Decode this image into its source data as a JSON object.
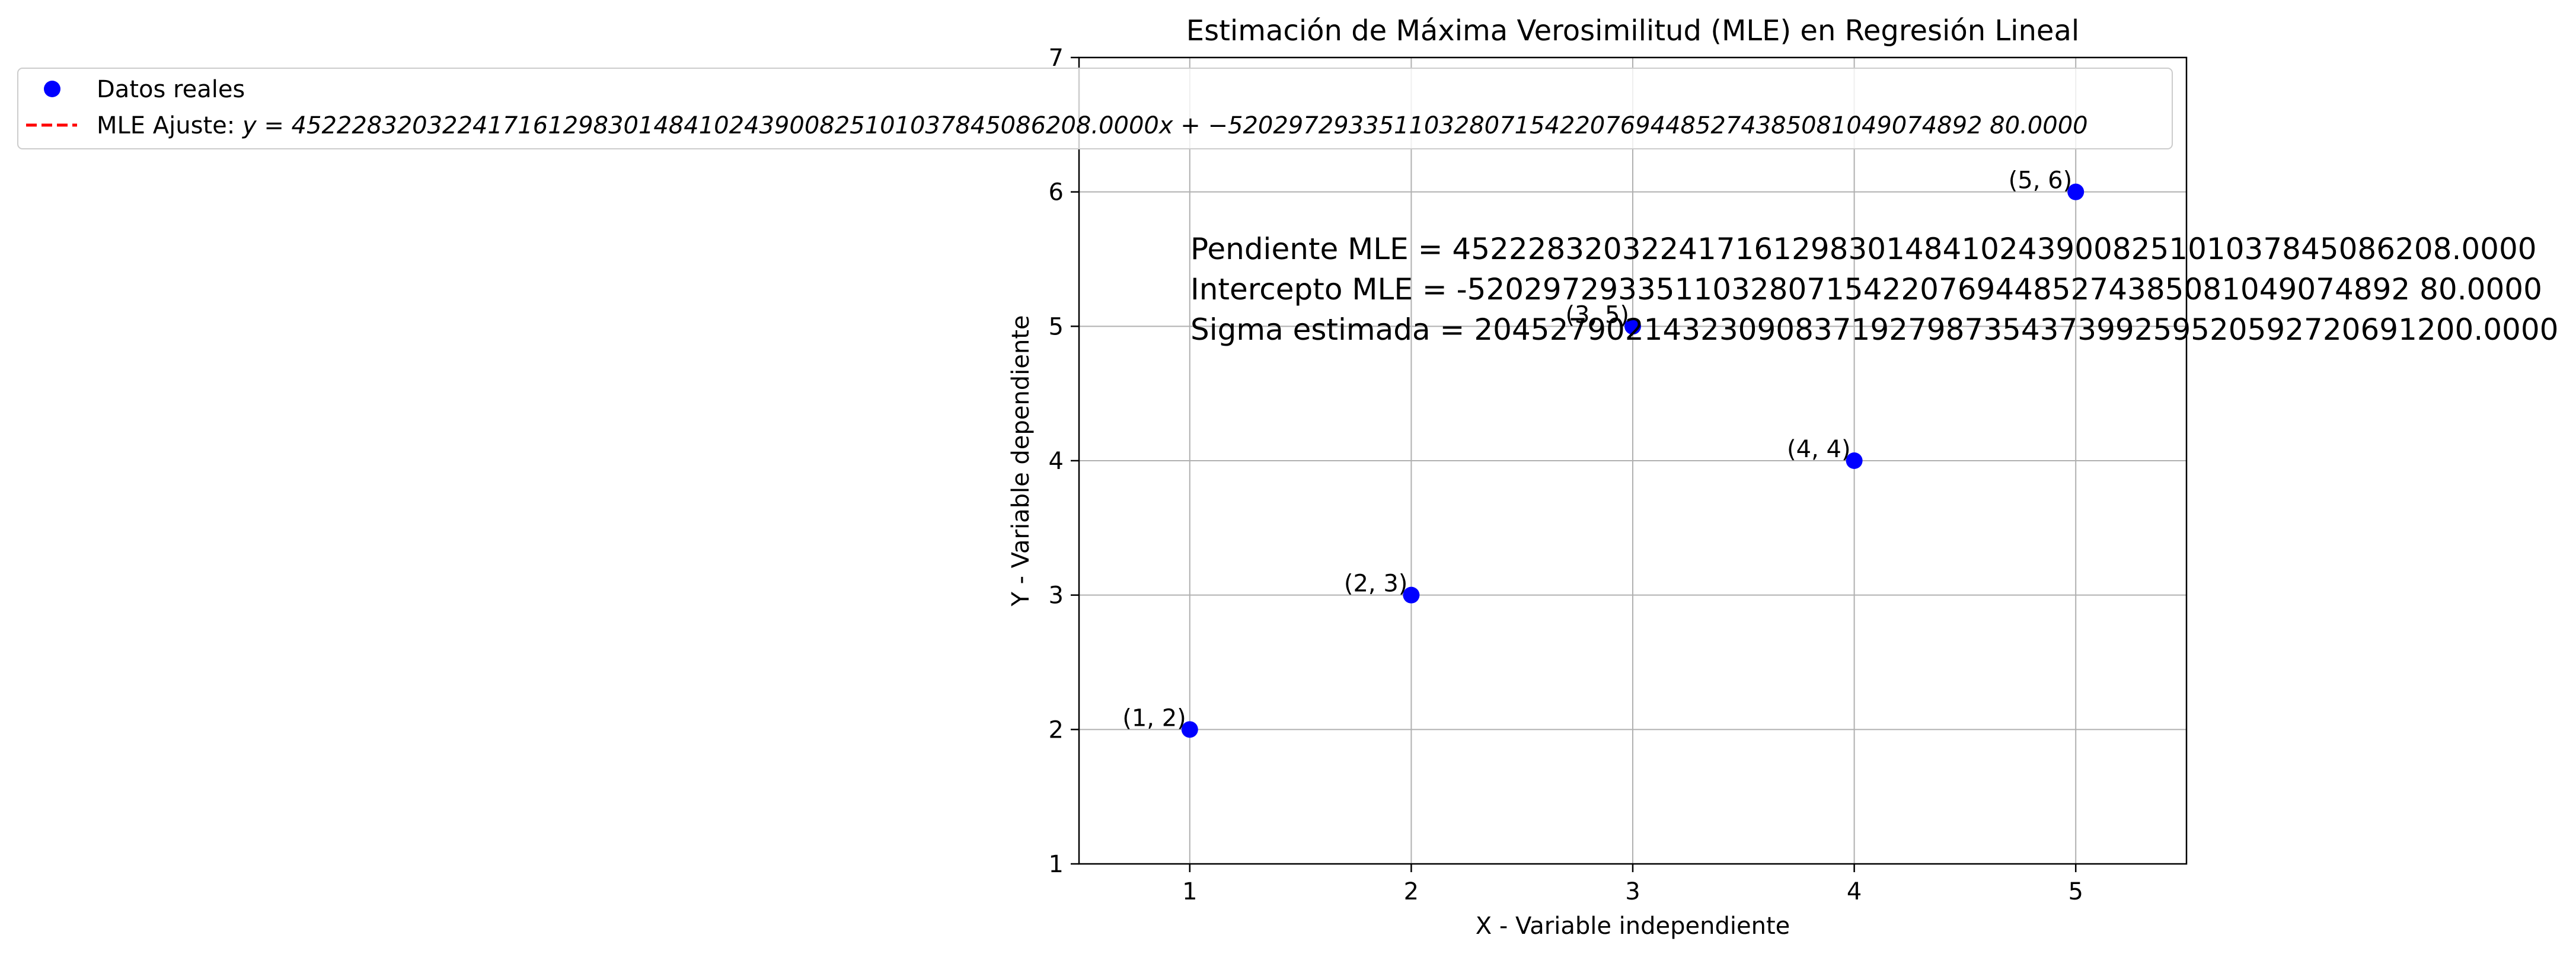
{
  "chart_data": {
    "type": "scatter",
    "title": "Estimación de Máxima Verosimilitud (MLE) en Regresión Lineal",
    "xlabel": "X - Variable independiente",
    "ylabel": "Y - Variable dependiente",
    "xlim": [
      0.5,
      5.5
    ],
    "ylim": [
      1,
      7
    ],
    "xticks": [
      1,
      2,
      3,
      4,
      5
    ],
    "yticks": [
      1,
      2,
      3,
      4,
      5,
      6,
      7
    ],
    "grid": true,
    "legend_position": "top-left",
    "series": [
      {
        "name": "Datos reales",
        "kind": "scatter",
        "color": "#0000ff",
        "x": [
          1,
          2,
          3,
          4,
          5
        ],
        "y": [
          2,
          3,
          5,
          4,
          6
        ]
      },
      {
        "name": "MLE Ajuste: y = 45222832032241716129830148410243900825101037845086208.0000x + −52029729335110328071542207694485274385081049074892 80.0000",
        "kind": "line",
        "style": "dashed",
        "color": "#ff0000"
      }
    ],
    "point_labels": [
      "(1, 2)",
      "(2, 3)",
      "(3, 5)",
      "(4, 4)",
      "(5, 6)"
    ],
    "stats_text": [
      "Pendiente MLE = 45222832032241716129830148410243900825101037845086208.0000",
      "Intercepto MLE = -52029729335110328071542207694485274385081049074892 80.0000",
      "Sigma estimada = 20452790214323090837192798735437399259520592720691200.0000"
    ]
  },
  "legend": {
    "label_scatter": "Datos reales",
    "label_line_prefix": "MLE Ajuste: ",
    "label_line_equation": "y = 45222832032241716129830148410243900825101037845086208.0000x + −52029729335110328071542207694485274385081049074892 80.0000"
  }
}
